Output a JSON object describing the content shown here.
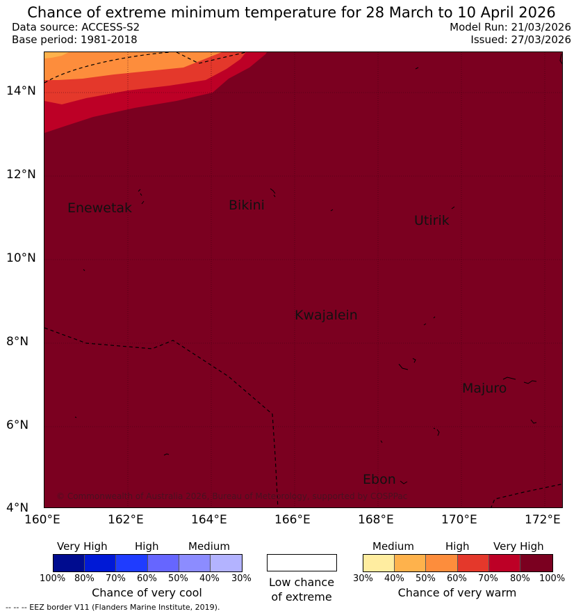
{
  "header": {
    "title": "Chance of extreme minimum temperature for 28 March to 10 April 2026",
    "data_source": "Data source: ACCESS-S2",
    "base_period": "Base period: 1981-2018",
    "model_run": "Model Run: 21/03/2026",
    "issued": "Issued: 27/03/2026"
  },
  "map": {
    "lat_ticks": [
      "14°N",
      "12°N",
      "10°N",
      "8°N",
      "6°N",
      "4°N"
    ],
    "lon_ticks": [
      "160°E",
      "162°E",
      "164°E",
      "166°E",
      "168°E",
      "170°E",
      "172°E"
    ],
    "places": [
      "Enewetak",
      "Bikini",
      "Utirik",
      "Kwajalein",
      "Majuro",
      "Ebon"
    ],
    "copyright": "© Commonwealth of Australia 2026, Bureau of Meteorology, supported by COSPPac",
    "colors": {
      "very_high_80_100": "#7b0020",
      "70_80": "#bd0026",
      "60_70": "#e4382b",
      "50_60": "#fd8d3c",
      "40_50": "#feb24c"
    }
  },
  "legend": {
    "cool": {
      "categories": [
        "Very High",
        "High",
        "Medium"
      ],
      "scale": [
        "100%",
        "80%",
        "70%",
        "60%",
        "50%",
        "40%",
        "30%"
      ],
      "caption": "Chance of very cool",
      "colors": [
        "#000c8f",
        "#0019d6",
        "#1f3cff",
        "#6666ff",
        "#8c8cff",
        "#b3b3ff"
      ]
    },
    "neutral": {
      "caption_line1": "Low chance",
      "caption_line2": "of extreme",
      "color": "#ffffff"
    },
    "warm": {
      "categories": [
        "Medium",
        "High",
        "Very High"
      ],
      "scale": [
        "30%",
        "40%",
        "50%",
        "60%",
        "70%",
        "80%",
        "100%"
      ],
      "caption": "Chance of very warm",
      "colors": [
        "#ffeda0",
        "#feb24c",
        "#fd8d3c",
        "#e4382b",
        "#bd0026",
        "#7b0020"
      ]
    }
  },
  "footer": {
    "eez_note": "--  --  -- EEZ border V11 (Flanders Marine Institute, 2019)."
  }
}
